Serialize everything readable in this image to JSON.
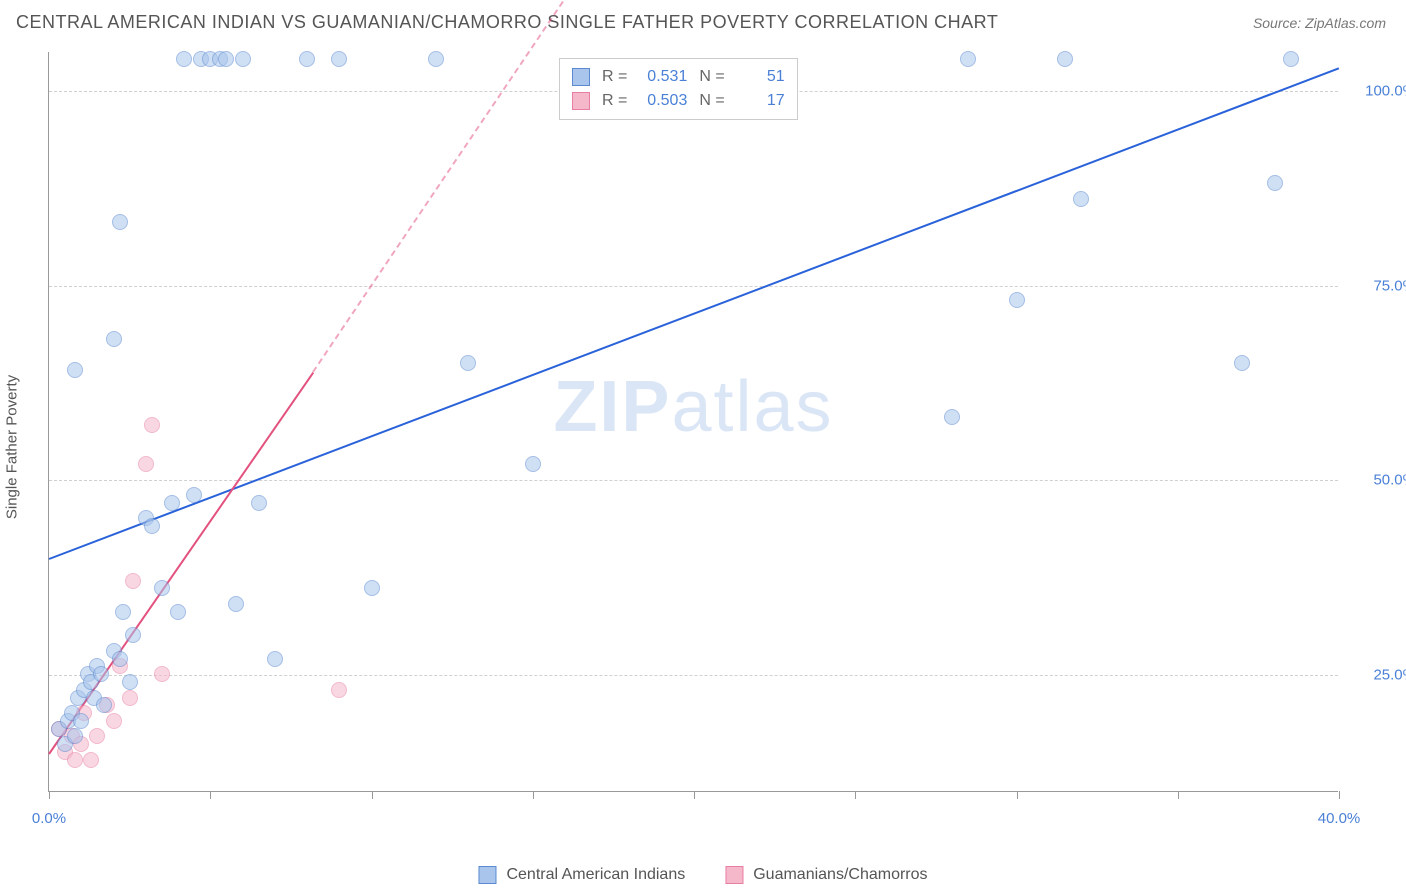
{
  "title": "CENTRAL AMERICAN INDIAN VS GUAMANIAN/CHAMORRO SINGLE FATHER POVERTY CORRELATION CHART",
  "source": "Source: ZipAtlas.com",
  "ylabel": "Single Father Poverty",
  "watermark_bold": "ZIP",
  "watermark_rest": "atlas",
  "chart": {
    "type": "scatter",
    "xlim": [
      0,
      40
    ],
    "ylim": [
      10,
      105
    ],
    "xticks": [
      0,
      5,
      10,
      15,
      20,
      25,
      30,
      35,
      40
    ],
    "xtick_labels": {
      "0": "0.0%",
      "40": "40.0%"
    },
    "yticks": [
      25,
      50,
      75,
      100
    ],
    "ytick_labels": [
      "25.0%",
      "50.0%",
      "75.0%",
      "100.0%"
    ],
    "grid_color": "#d8d8d8",
    "background": "#ffffff",
    "marker_radius": 8,
    "marker_opacity": 0.55
  },
  "seriesA": {
    "name": "Central American Indians",
    "color_fill": "#a9c5ec",
    "color_stroke": "#5b8ad0",
    "trend_color": "#2962d9",
    "R": "0.531",
    "N": "51",
    "trend_x1": 0,
    "trend_y1": 40,
    "trend_x2": 40,
    "trend_y2": 103,
    "points": [
      [
        0.3,
        18
      ],
      [
        0.5,
        16
      ],
      [
        0.6,
        19
      ],
      [
        0.7,
        20
      ],
      [
        0.8,
        17
      ],
      [
        0.9,
        22
      ],
      [
        1.0,
        19
      ],
      [
        1.1,
        23
      ],
      [
        1.2,
        25
      ],
      [
        1.3,
        24
      ],
      [
        1.4,
        22
      ],
      [
        1.5,
        26
      ],
      [
        1.6,
        25
      ],
      [
        1.7,
        21
      ],
      [
        2.0,
        28
      ],
      [
        2.2,
        27
      ],
      [
        2.3,
        33
      ],
      [
        2.5,
        24
      ],
      [
        2.6,
        30
      ],
      [
        3.0,
        45
      ],
      [
        3.2,
        44
      ],
      [
        3.5,
        36
      ],
      [
        3.8,
        47
      ],
      [
        4.0,
        33
      ],
      [
        4.2,
        104
      ],
      [
        4.5,
        48
      ],
      [
        4.7,
        104
      ],
      [
        5.0,
        104
      ],
      [
        5.3,
        104
      ],
      [
        5.5,
        104
      ],
      [
        5.8,
        34
      ],
      [
        6.0,
        104
      ],
      [
        6.5,
        47
      ],
      [
        7.0,
        27
      ],
      [
        8.0,
        104
      ],
      [
        9.0,
        104
      ],
      [
        10.0,
        36
      ],
      [
        12.0,
        104
      ],
      [
        13.0,
        65
      ],
      [
        15.0,
        52
      ],
      [
        2.0,
        68
      ],
      [
        0.8,
        64
      ],
      [
        2.2,
        83
      ],
      [
        28.5,
        104
      ],
      [
        28.0,
        58
      ],
      [
        30.0,
        73
      ],
      [
        31.5,
        104
      ],
      [
        32.0,
        86
      ],
      [
        37.0,
        65
      ],
      [
        38.0,
        88
      ],
      [
        38.5,
        104
      ]
    ]
  },
  "seriesB": {
    "name": "Guamanians/Chamorros",
    "color_fill": "#f5b8cb",
    "color_stroke": "#e87fa3",
    "trend_color": "#e3517e",
    "R": "0.503",
    "N": "17",
    "trend_x1": 0,
    "trend_y1": 15,
    "trend_x2": 8.2,
    "trend_y2": 64,
    "trend_dash_x2": 17,
    "trend_dash_y2": 118,
    "points": [
      [
        0.3,
        18
      ],
      [
        0.5,
        15
      ],
      [
        0.7,
        17
      ],
      [
        0.8,
        14
      ],
      [
        1.0,
        16
      ],
      [
        1.1,
        20
      ],
      [
        1.3,
        14
      ],
      [
        1.5,
        17
      ],
      [
        1.8,
        21
      ],
      [
        2.0,
        19
      ],
      [
        2.2,
        26
      ],
      [
        2.5,
        22
      ],
      [
        2.6,
        37
      ],
      [
        3.0,
        52
      ],
      [
        3.2,
        57
      ],
      [
        3.5,
        25
      ],
      [
        9.0,
        23
      ]
    ]
  },
  "legend_top": {
    "r_label": "R =",
    "n_label": "N ="
  }
}
